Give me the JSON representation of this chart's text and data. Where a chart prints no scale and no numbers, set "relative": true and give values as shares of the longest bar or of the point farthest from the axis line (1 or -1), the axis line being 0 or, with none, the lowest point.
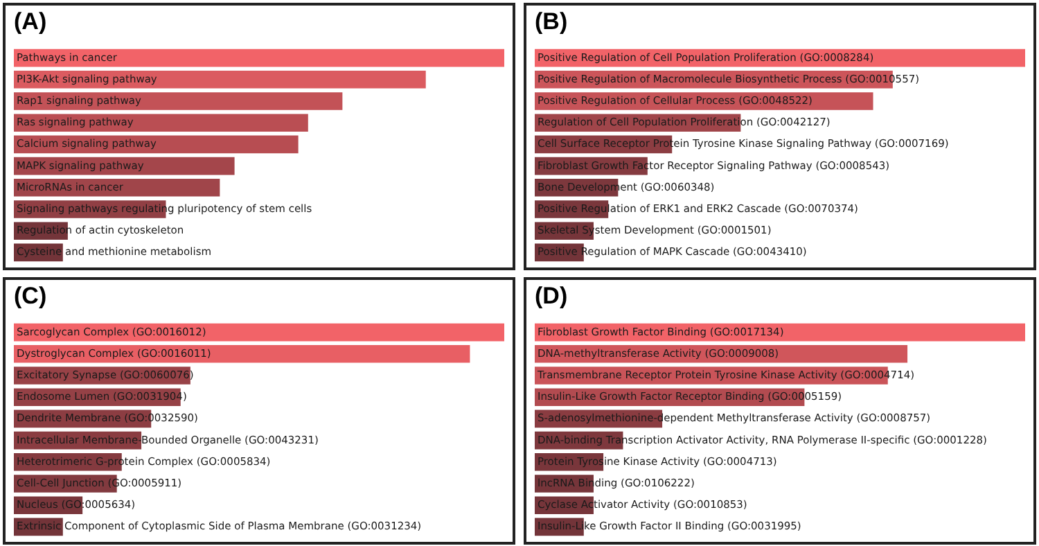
{
  "chart_data": [
    {
      "type": "bar",
      "title": "(A)",
      "orientation": "horizontal",
      "relative": true,
      "categories": [
        "Pathways in cancer",
        "PI3K-Akt signaling pathway",
        "Rap1 signaling pathway",
        "Ras signaling pathway",
        "Calcium signaling pathway",
        "MAPK signaling pathway",
        "MicroRNAs in cancer",
        "Signaling pathways regulating pluripotency of stem cells",
        "Regulation of actin cytoskeleton",
        "Cysteine and methionine metabolism"
      ],
      "values": [
        1,
        0.84,
        0.67,
        0.6,
        0.58,
        0.45,
        0.42,
        0.31,
        0.11,
        0.1
      ],
      "colors": [
        "#f26368",
        "#db5b60",
        "#c35257",
        "#ba4e53",
        "#b74d52",
        "#a4464b",
        "#a0454a",
        "#913f44",
        "#74353a",
        "#733439"
      ]
    },
    {
      "type": "bar",
      "title": "(B)",
      "orientation": "horizontal",
      "relative": true,
      "categories": [
        "Positive Regulation of Cell Population Proliferation (GO:0008284)",
        "Positive Regulation of Macromolecule Biosynthetic Process (GO:0010557)",
        "Positive Regulation of Cellular Process (GO:0048522)",
        "Regulation of Cell Population Proliferation (GO:0042127)",
        "Cell Surface Receptor Protein Tyrosine Kinase Signaling Pathway (GO:0007169)",
        "Fibroblast Growth Factor Receptor Signaling Pathway (GO:0008543)",
        "Bone Development (GO:0060348)",
        "Positive Regulation of ERK1 and ERK2 Cascade (GO:0070374)",
        "Skeletal System Development (GO:0001501)",
        "Positive Regulation of MAPK Cascade (GO:0043410)"
      ],
      "values": [
        1,
        0.73,
        0.69,
        0.42,
        0.28,
        0.23,
        0.17,
        0.15,
        0.12,
        0.1
      ],
      "colors": [
        "#f26368",
        "#cc555a",
        "#c65358",
        "#a0454a",
        "#8c3d42",
        "#853b40",
        "#7d383d",
        "#7a373c",
        "#76353a",
        "#733439"
      ]
    },
    {
      "type": "bar",
      "title": "(C)",
      "orientation": "horizontal",
      "relative": true,
      "categories": [
        "Sarcoglycan Complex (GO:0016012)",
        "Dystroglycan Complex (GO:0016011)",
        "Excitatory Synapse (GO:0060076)",
        "Endosome Lumen (GO:0031904)",
        "Dendrite Membrane (GO:0032590)",
        "Intracellular Membrane-Bounded Organelle (GO:0043231)",
        "Heterotrimeric G-protein Complex (GO:0005834)",
        "Cell-Cell Junction (GO:0005911)",
        "Nucleus (GO:0005634)",
        "Extrinsic Component of Cytoplasmic Side of Plasma Membrane (GO:0031234)"
      ],
      "values": [
        1,
        0.93,
        0.36,
        0.34,
        0.28,
        0.26,
        0.22,
        0.21,
        0.14,
        0.1
      ],
      "colors": [
        "#f26368",
        "#e85f64",
        "#984247",
        "#954146",
        "#8c3d42",
        "#8a3c41",
        "#843a3f",
        "#823a3f",
        "#79363b",
        "#733439"
      ]
    },
    {
      "type": "bar",
      "title": "(D)",
      "orientation": "horizontal",
      "relative": true,
      "categories": [
        "Fibroblast Growth Factor Binding (GO:0017134)",
        "DNA-methyltransferase Activity (GO:0009008)",
        "Transmembrane Receptor Protein Tyrosine Kinase Activity (GO:0004714)",
        "Insulin-Like Growth Factor Receptor Binding (GO:0005159)",
        "S-adenosylmethionine-dependent Methyltransferase Activity (GO:0008757)",
        "DNA-binding Transcription Activator Activity, RNA Polymerase II-specific (GO:0001228)",
        "Protein Tyrosine Kinase Activity (GO:0004713)",
        "lncRNA Binding (GO:0106222)",
        "Cyclase Activator Activity (GO:0010853)",
        "Insulin-Like Growth Factor II Binding (GO:0031995)"
      ],
      "values": [
        1,
        0.76,
        0.72,
        0.55,
        0.26,
        0.18,
        0.14,
        0.12,
        0.12,
        0.1
      ],
      "colors": [
        "#f26368",
        "#d0565b",
        "#ca5459",
        "#b24b50",
        "#8a3c41",
        "#7e383d",
        "#79363b",
        "#76353a",
        "#76353a",
        "#733439"
      ]
    }
  ]
}
